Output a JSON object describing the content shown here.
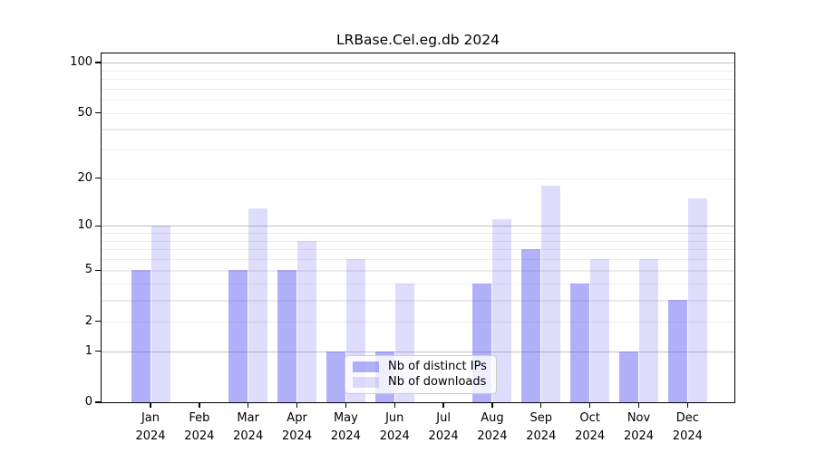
{
  "chart_data": {
    "type": "bar",
    "title": "LRBase.Cel.eg.db 2024",
    "year": "2024",
    "categories": [
      "Jan",
      "Feb",
      "Mar",
      "Apr",
      "May",
      "Jun",
      "Jul",
      "Aug",
      "Sep",
      "Oct",
      "Nov",
      "Dec"
    ],
    "series": [
      {
        "name": "Nb of distinct IPs",
        "key": "distinct-ips",
        "color": "rgba(60,60,240,0.40)",
        "values": [
          5,
          0,
          5,
          5,
          1,
          1,
          0,
          4,
          7,
          4,
          1,
          3
        ]
      },
      {
        "name": "Nb of downloads",
        "key": "downloads",
        "color": "rgba(60,60,240,0.17)",
        "values": [
          10,
          0,
          13,
          8,
          6,
          4,
          0,
          11,
          18,
          6,
          6,
          15
        ]
      }
    ],
    "xlabel": "",
    "ylabel": "",
    "yscale": "log10(1+value)",
    "ylim": [
      0,
      115
    ],
    "yticks": [
      0,
      1,
      2,
      5,
      10,
      20,
      50,
      100
    ],
    "major_gridlines": [
      1,
      10,
      100
    ],
    "minor_gridlines": [
      2,
      3,
      4,
      5,
      6,
      7,
      8,
      9,
      20,
      30,
      40,
      50,
      60,
      70,
      80,
      90
    ],
    "grid_major_color": "#c3c3c3",
    "grid_minor_color": "#ececec",
    "legend_position": "lower center"
  }
}
